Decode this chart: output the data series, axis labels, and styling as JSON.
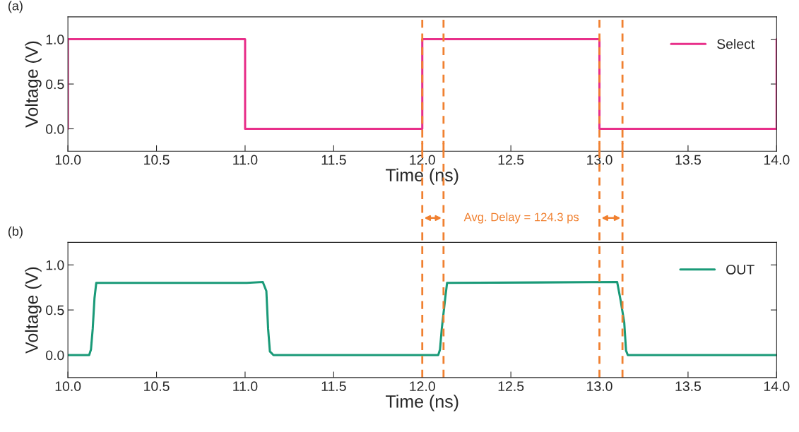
{
  "chart_data": [
    {
      "type": "line",
      "title": "(a)",
      "xlabel": "Time (ns)",
      "ylabel": "Voltage (V)",
      "xlim": [
        10.0,
        14.0
      ],
      "xticks": [
        {
          "value": 10.0,
          "label": "10.0"
        },
        {
          "value": 10.5,
          "label": "10.5"
        },
        {
          "value": 11.0,
          "label": "11.0"
        },
        {
          "value": 11.5,
          "label": "11.5"
        },
        {
          "value": 12.0,
          "label": "12.0"
        },
        {
          "value": 12.5,
          "label": "12.5"
        },
        {
          "value": 13.0,
          "label": "13.0"
        },
        {
          "value": 13.5,
          "label": "13.5"
        },
        {
          "value": 14.0,
          "label": "14.0"
        }
      ],
      "ylim": [
        -0.25,
        1.25
      ],
      "yticks": [
        {
          "value": 0.0,
          "label": "0.0"
        },
        {
          "value": 0.5,
          "label": "0.5"
        },
        {
          "value": 1.0,
          "label": "1.0"
        }
      ],
      "legend": "top right",
      "grid": false,
      "series": [
        {
          "name": "Select",
          "color": "#e8308a",
          "x": [
            10.0,
            10.0,
            11.0,
            11.0,
            12.0,
            12.0,
            13.0,
            13.0,
            14.0,
            14.0
          ],
          "values": [
            0.0,
            1.0,
            1.0,
            0.0,
            0.0,
            1.0,
            1.0,
            0.0,
            0.0,
            1.0
          ]
        }
      ],
      "ref_lines": [
        {
          "axis": "x",
          "value": 12.0,
          "color": "#f08030",
          "line_style": "dashed"
        },
        {
          "axis": "x",
          "value": 12.12,
          "color": "#f08030",
          "line_style": "dashed"
        },
        {
          "axis": "x",
          "value": 13.0,
          "color": "#f08030",
          "line_style": "dashed"
        },
        {
          "axis": "x",
          "value": 13.13,
          "color": "#f08030",
          "line_style": "dashed"
        }
      ]
    },
    {
      "type": "line",
      "title": "(b)",
      "xlabel": "Time (ns)",
      "ylabel": "Voltage (V)",
      "xlim": [
        10.0,
        14.0
      ],
      "xticks": [
        {
          "value": 10.0,
          "label": "10.0"
        },
        {
          "value": 10.5,
          "label": "10.5"
        },
        {
          "value": 11.0,
          "label": "11.0"
        },
        {
          "value": 11.5,
          "label": "11.5"
        },
        {
          "value": 12.0,
          "label": "12.0"
        },
        {
          "value": 12.5,
          "label": "12.5"
        },
        {
          "value": 13.0,
          "label": "13.0"
        },
        {
          "value": 13.5,
          "label": "13.5"
        },
        {
          "value": 14.0,
          "label": "14.0"
        }
      ],
      "ylim": [
        -0.25,
        1.25
      ],
      "yticks": [
        {
          "value": 0.0,
          "label": "0.0"
        },
        {
          "value": 0.5,
          "label": "0.5"
        },
        {
          "value": 1.0,
          "label": "1.0"
        }
      ],
      "legend": "top right",
      "grid": false,
      "series": [
        {
          "name": "OUT",
          "color": "#1a9a78",
          "x": [
            10.0,
            10.12,
            10.13,
            10.14,
            10.15,
            10.16,
            11.01,
            11.1,
            11.12,
            11.13,
            11.14,
            11.16,
            12.09,
            12.1,
            12.11,
            12.13,
            12.14,
            13.1,
            13.12,
            13.14,
            13.15,
            13.16,
            14.0
          ],
          "values": [
            0.0,
            0.0,
            0.06,
            0.29,
            0.63,
            0.8,
            0.8,
            0.81,
            0.71,
            0.29,
            0.04,
            0.0,
            0.0,
            0.06,
            0.29,
            0.64,
            0.8,
            0.81,
            0.6,
            0.36,
            0.05,
            0.0,
            0.0
          ]
        }
      ],
      "ref_lines": [
        {
          "axis": "x",
          "value": 12.0,
          "color": "#f08030",
          "line_style": "dashed"
        },
        {
          "axis": "x",
          "value": 12.12,
          "color": "#f08030",
          "line_style": "dashed"
        },
        {
          "axis": "x",
          "value": 13.0,
          "color": "#f08030",
          "line_style": "dashed"
        },
        {
          "axis": "x",
          "value": 13.13,
          "color": "#f08030",
          "line_style": "dashed"
        }
      ],
      "annotations": [
        "Avg. Delay = 124.3 ps"
      ]
    }
  ]
}
